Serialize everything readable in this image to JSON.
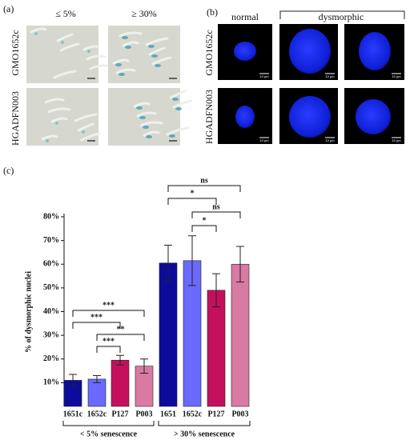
{
  "panel_a": {
    "label": "(a)",
    "columns": [
      "≤ 5%",
      "≥ 30%"
    ],
    "rows": [
      "GMO1652c",
      "HGADFN003"
    ]
  },
  "panel_b": {
    "label": "(b)",
    "columns": [
      "normal",
      "dysmorphic"
    ],
    "rows": [
      "GMO1652c",
      "HGADFN003"
    ],
    "scale_bar_label": "10 µm"
  },
  "chart_data": {
    "type": "bar",
    "panel_label": "(c)",
    "y_label": "% of dysmorphic nuclei",
    "categories": [
      "1651c",
      "1652c",
      "P127",
      "P003",
      "1651",
      "1652c",
      "P127",
      "P003"
    ],
    "groups": [
      "< 5% senescence",
      "> 30% senescence"
    ],
    "values": [
      11,
      11.5,
      19.5,
      17,
      60.5,
      61.5,
      49,
      60
    ],
    "errors": [
      2.5,
      1.5,
      2,
      3,
      7.5,
      10.5,
      7,
      7.5
    ],
    "colors": [
      "#0c0c9c",
      "#6a6aff",
      "#c4105c",
      "#d97aa3",
      "#0c0c9c",
      "#6a6aff",
      "#c4105c",
      "#d97aa3"
    ],
    "ylim": [
      0,
      80
    ],
    "yticks": [
      {
        "value": 10,
        "label": "10%"
      },
      {
        "value": 20,
        "label": "20%"
      },
      {
        "value": 30,
        "label": "30%"
      },
      {
        "value": 40,
        "label": "40%"
      },
      {
        "value": 50,
        "label": "50%"
      },
      {
        "value": 60,
        "label": "60%"
      },
      {
        "value": 70,
        "label": "70%"
      },
      {
        "value": 80,
        "label": "80%"
      }
    ],
    "annotations": [
      "***",
      "***",
      "**",
      "***",
      "ns",
      "*",
      "ns",
      "*"
    ]
  }
}
